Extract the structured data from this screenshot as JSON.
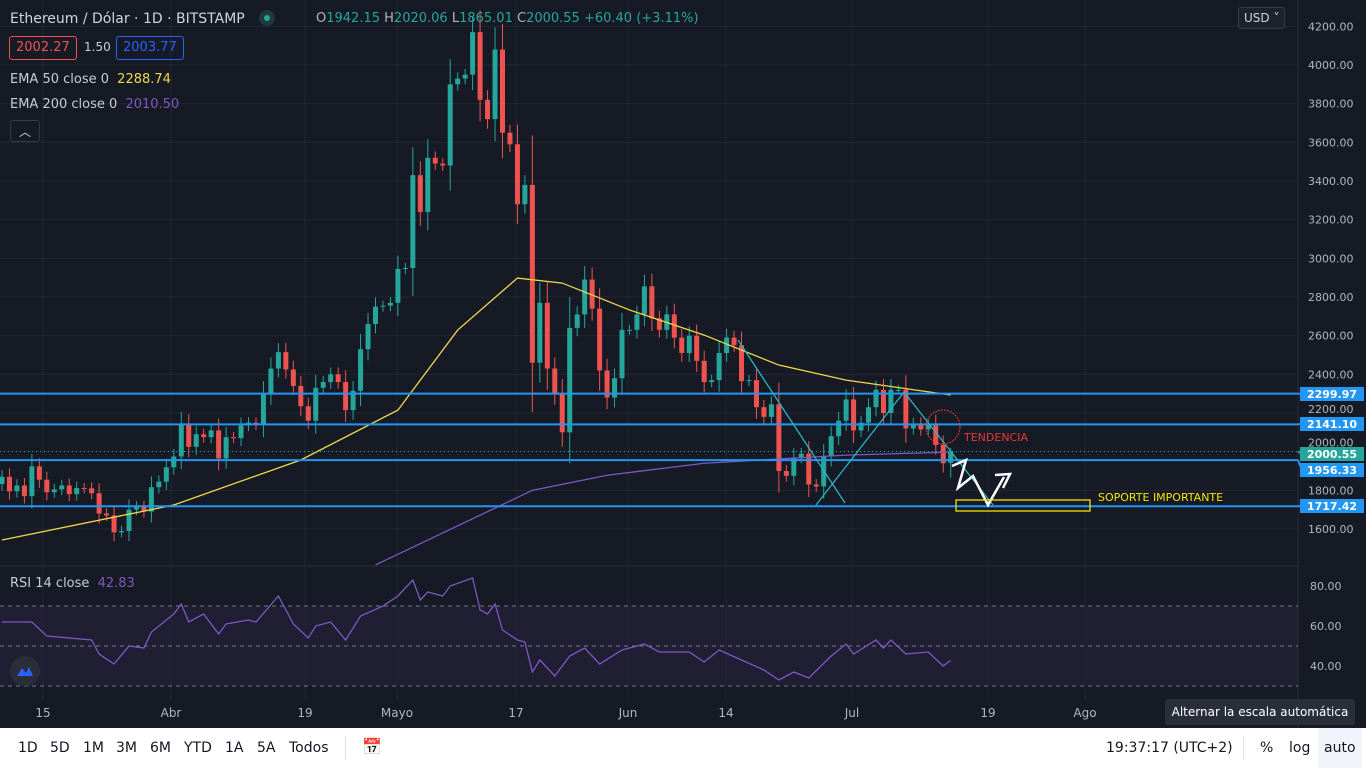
{
  "header": {
    "symbol": "Ethereum / Dólar",
    "sep": "·",
    "interval": "1D",
    "exchange": "BITSTAMP",
    "ohlc": {
      "o_label": "O",
      "o": "1942.15",
      "h_label": "H",
      "h": "2020.06",
      "l_label": "L",
      "l": "1865.01",
      "c_label": "C",
      "c": "2000.55",
      "change": "+60.40 (+3.11%)"
    },
    "bid": "2002.27",
    "spread": "1.50",
    "ask": "2003.77"
  },
  "indicators": {
    "ema50_label": "EMA 50 close 0",
    "ema50_value": "2288.74",
    "ema200_label": "EMA 200 close 0",
    "ema200_value": "2010.50",
    "rsi_label": "RSI 14 close",
    "rsi_value": "42.83"
  },
  "currency": "USD",
  "colors": {
    "background": "#161a25",
    "up": "#26a69a",
    "down": "#ef5350",
    "ema50": "#f0d84a",
    "ema200": "#7e57c2",
    "rsi": "#7e57c2",
    "level_lines": "#2196f3",
    "trendlines": "#26b5c4"
  },
  "chart_data": {
    "type": "candlestick",
    "price_axis": {
      "ticks": [
        "4200.00",
        "4000.00",
        "3800.00",
        "3600.00",
        "3400.00",
        "3200.00",
        "3000.00",
        "2800.00",
        "2600.00",
        "2400.00",
        "2200.00",
        "2000.00",
        "1800.00",
        "1600.00"
      ],
      "range": [
        1420,
        4230
      ]
    },
    "time_axis": {
      "ticks": [
        "15",
        "Abr",
        "19",
        "Mayo",
        "17",
        "Jun",
        "14",
        "Jul",
        "19",
        "Ago"
      ]
    },
    "closes": [
      {
        "month": "Mar",
        "start_day": 9,
        "values": [
          1870,
          1795,
          1825,
          1770,
          1924,
          1855,
          1790,
          1805,
          1825,
          1780,
          1812,
          1810,
          1785,
          1680,
          1670,
          1583,
          1590,
          1700,
          1715,
          1690,
          1816,
          1845,
          1919
        ]
      },
      {
        "month": "Abr",
        "start_day": 1,
        "values": [
          1975,
          2140,
          2025,
          2090,
          2075,
          2110,
          1965,
          2075,
          2070,
          2135,
          2150,
          2140,
          2300,
          2430,
          2515,
          2425,
          2340,
          2235,
          2160,
          2330,
          2360,
          2400,
          2360,
          2215,
          2315,
          2530,
          2660,
          2750,
          2755,
          2770
        ]
      },
      {
        "month": "Mayo",
        "start_day": 1,
        "values": [
          2945,
          2950,
          3430,
          3240,
          3520,
          3490,
          3480,
          3900,
          3930,
          3950,
          4170,
          3820,
          3720,
          4080,
          3650,
          3590,
          3280,
          3380,
          2460,
          2770,
          2430,
          2300,
          2100,
          2640,
          2710,
          2890,
          2740,
          2420,
          2280,
          2380,
          2630
        ]
      },
      {
        "month": "Jun",
        "start_day": 1,
        "values": [
          2630,
          2710,
          2855,
          2690,
          2630,
          2710,
          2590,
          2510,
          2600,
          2470,
          2360,
          2370,
          2510,
          2590,
          2550,
          2365,
          2370,
          2230,
          2180,
          2245,
          1900,
          1875,
          1970,
          1990,
          1830,
          1820,
          1975,
          2080,
          2160,
          2270
        ]
      },
      {
        "month": "Jul",
        "start_day": 1,
        "values": [
          2110,
          2150,
          2230,
          2320,
          2200,
          2320,
          2320,
          2120,
          2145,
          2115,
          2140,
          2035,
          1940,
          2000.55
        ]
      }
    ],
    "last_open": 1942.15,
    "last_high": 2020.06,
    "last_low": 1865.01,
    "ema50": [
      [
        "Mar",
        9,
        1543
      ],
      [
        "Abr",
        1,
        1724
      ],
      [
        "Abr",
        18,
        1957
      ],
      [
        "Mayo",
        1,
        2215
      ],
      [
        "Mayo",
        9,
        2629
      ],
      [
        "Mayo",
        17,
        2898
      ],
      [
        "Mayo",
        23,
        2872
      ],
      [
        "Jun",
        1,
        2733
      ],
      [
        "Jun",
        11,
        2603
      ],
      [
        "Jun",
        21,
        2448
      ],
      [
        "Jun",
        30,
        2370
      ],
      [
        "Jul",
        14,
        2293
      ]
    ],
    "ema200": [
      [
        "Abr",
        28,
        1414
      ],
      [
        "Mayo",
        19,
        1800
      ],
      [
        "Mayo",
        29,
        1878
      ],
      [
        "Jun",
        11,
        1940
      ],
      [
        "Jun",
        30,
        1982
      ],
      [
        "Jul",
        14,
        1998
      ]
    ],
    "levels": [
      {
        "price": 2299.97,
        "label": "2299.97"
      },
      {
        "price": 2141.1,
        "label": "2141.10"
      },
      {
        "price": 1956.33,
        "label": "1956.33"
      },
      {
        "price": 1717.42,
        "label": "1717.42"
      }
    ],
    "last_price": {
      "price": 2000.55,
      "label": "2000.55"
    },
    "annotations": {
      "trend": "TENDENCIA",
      "support": "SOPORTE IMPORTANTE"
    },
    "rsi": {
      "ticks": [
        "80.00",
        "60.00",
        "40.00"
      ],
      "bands": [
        70,
        50,
        30
      ],
      "range": [
        24,
        88
      ],
      "points": [
        [
          "Mar",
          9,
          62
        ],
        [
          "Mar",
          13,
          62
        ],
        [
          "Mar",
          15,
          55
        ],
        [
          "Mar",
          21,
          53
        ],
        [
          "Mar",
          22,
          46
        ],
        [
          "Mar",
          24,
          41
        ],
        [
          "Mar",
          26,
          50
        ],
        [
          "Mar",
          28,
          49
        ],
        [
          "Mar",
          29,
          57
        ],
        [
          "Abr",
          1,
          66
        ],
        [
          "Abr",
          2,
          71
        ],
        [
          "Abr",
          3,
          62
        ],
        [
          "Abr",
          5,
          66
        ],
        [
          "Abr",
          7,
          56
        ],
        [
          "Abr",
          8,
          61
        ],
        [
          "Abr",
          11,
          63
        ],
        [
          "Abr",
          12,
          62
        ],
        [
          "Abr",
          15,
          75
        ],
        [
          "Abr",
          17,
          61
        ],
        [
          "Abr",
          19,
          54
        ],
        [
          "Abr",
          20,
          60
        ],
        [
          "Abr",
          22,
          62
        ],
        [
          "Abr",
          24,
          53
        ],
        [
          "Abr",
          26,
          65
        ],
        [
          "Abr",
          29,
          70
        ],
        [
          "Mayo",
          1,
          75
        ],
        [
          "Mayo",
          3,
          83
        ],
        [
          "Mayo",
          4,
          73
        ],
        [
          "Mayo",
          5,
          77
        ],
        [
          "Mayo",
          7,
          75
        ],
        [
          "Mayo",
          8,
          80
        ],
        [
          "Mayo",
          11,
          84
        ],
        [
          "Mayo",
          12,
          68
        ],
        [
          "Mayo",
          13,
          66
        ],
        [
          "Mayo",
          14,
          71
        ],
        [
          "Mayo",
          15,
          58
        ],
        [
          "Mayo",
          17,
          53
        ],
        [
          "Mayo",
          18,
          52
        ],
        [
          "Mayo",
          19,
          37
        ],
        [
          "Mayo",
          20,
          43
        ],
        [
          "Mayo",
          22,
          35
        ],
        [
          "Mayo",
          24,
          45
        ],
        [
          "Mayo",
          26,
          49
        ],
        [
          "Mayo",
          28,
          41
        ],
        [
          "Mayo",
          31,
          48
        ],
        [
          "Jun",
          3,
          51
        ],
        [
          "Jun",
          5,
          47
        ],
        [
          "Jun",
          9,
          47
        ],
        [
          "Jun",
          11,
          42
        ],
        [
          "Jun",
          13,
          48
        ],
        [
          "Jun",
          16,
          43
        ],
        [
          "Jun",
          19,
          38
        ],
        [
          "Jun",
          21,
          33
        ],
        [
          "Jun",
          23,
          37
        ],
        [
          "Jun",
          25,
          34
        ],
        [
          "Jun",
          28,
          45
        ],
        [
          "Jun",
          30,
          51
        ],
        [
          "Jul",
          1,
          46
        ],
        [
          "Jul",
          4,
          53
        ],
        [
          "Jul",
          5,
          49
        ],
        [
          "Jul",
          6,
          53
        ],
        [
          "Jul",
          8,
          46
        ],
        [
          "Jul",
          11,
          47
        ],
        [
          "Jul",
          13,
          40
        ],
        [
          "Jul",
          14,
          42.83
        ]
      ]
    }
  },
  "tooltip": "Alternar la escala automática",
  "toolbar": {
    "ranges": [
      "1D",
      "5D",
      "1M",
      "3M",
      "6M",
      "YTD",
      "1A",
      "5A",
      "Todos"
    ],
    "time": "19:37:17 (UTC+2)",
    "percent": "%",
    "log": "log",
    "auto": "auto"
  }
}
